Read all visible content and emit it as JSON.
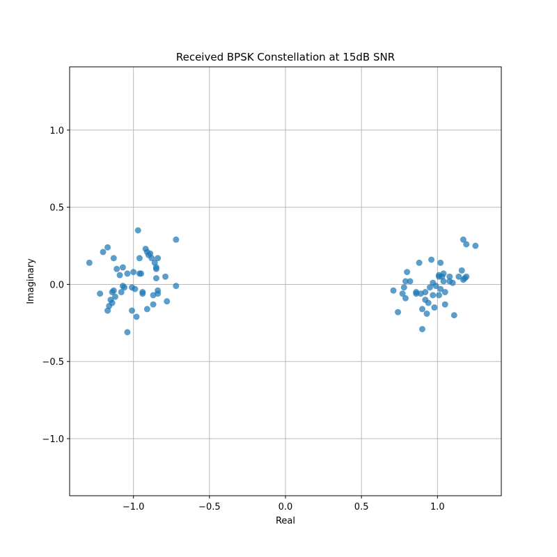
{
  "chart_data": {
    "type": "scatter",
    "title": "Received BPSK Constellation at 15dB SNR",
    "xlabel": "Real",
    "ylabel": "Imaginary",
    "xlim": [
      -1.42,
      1.42
    ],
    "ylim": [
      -1.37,
      1.41
    ],
    "xticks": [
      -1.0,
      -0.5,
      0.0,
      0.5,
      1.0
    ],
    "xtick_labels": [
      "−1.0",
      "−0.5",
      "0.0",
      "0.5",
      "1.0"
    ],
    "yticks": [
      -1.0,
      -0.5,
      0.0,
      0.5,
      1.0
    ],
    "ytick_labels": [
      "−1.0",
      "−0.5",
      "0.0",
      "0.5",
      "1.0"
    ],
    "grid": true,
    "marker_color": "#1f77b4",
    "points": [
      [
        -1.29,
        0.14
      ],
      [
        -1.22,
        -0.06
      ],
      [
        -1.2,
        0.21
      ],
      [
        -1.17,
        0.24
      ],
      [
        -1.17,
        -0.17
      ],
      [
        -1.16,
        -0.14
      ],
      [
        -1.15,
        -0.1
      ],
      [
        -1.14,
        -0.12
      ],
      [
        -1.14,
        -0.05
      ],
      [
        -1.13,
        -0.04
      ],
      [
        -1.13,
        0.17
      ],
      [
        -1.12,
        -0.08
      ],
      [
        -1.11,
        0.1
      ],
      [
        -1.09,
        0.06
      ],
      [
        -1.08,
        -0.05
      ],
      [
        -1.07,
        0.11
      ],
      [
        -1.07,
        -0.01
      ],
      [
        -1.06,
        -0.02
      ],
      [
        -1.04,
        -0.31
      ],
      [
        -1.04,
        0.07
      ],
      [
        -1.01,
        -0.17
      ],
      [
        -1.01,
        -0.02
      ],
      [
        -1.0,
        0.08
      ],
      [
        -0.99,
        -0.03
      ],
      [
        -0.98,
        -0.21
      ],
      [
        -0.97,
        0.35
      ],
      [
        -0.96,
        0.17
      ],
      [
        -0.96,
        0.07
      ],
      [
        -0.95,
        0.07
      ],
      [
        -0.94,
        -0.05
      ],
      [
        -0.94,
        -0.06
      ],
      [
        -0.92,
        0.23
      ],
      [
        -0.91,
        0.21
      ],
      [
        -0.91,
        -0.16
      ],
      [
        -0.9,
        0.19
      ],
      [
        -0.89,
        0.2
      ],
      [
        -0.88,
        0.17
      ],
      [
        -0.87,
        -0.07
      ],
      [
        -0.87,
        -0.13
      ],
      [
        -0.86,
        0.14
      ],
      [
        -0.85,
        0.11
      ],
      [
        -0.85,
        0.1
      ],
      [
        -0.85,
        0.04
      ],
      [
        -0.84,
        -0.04
      ],
      [
        -0.84,
        0.17
      ],
      [
        -0.84,
        -0.06
      ],
      [
        -0.79,
        0.05
      ],
      [
        -0.78,
        -0.11
      ],
      [
        -0.72,
        0.29
      ],
      [
        -0.72,
        -0.01
      ],
      [
        0.71,
        -0.04
      ],
      [
        0.74,
        -0.18
      ],
      [
        0.77,
        -0.06
      ],
      [
        0.78,
        -0.02
      ],
      [
        0.79,
        -0.09
      ],
      [
        0.79,
        0.02
      ],
      [
        0.8,
        0.08
      ],
      [
        0.82,
        0.02
      ],
      [
        0.86,
        -0.05
      ],
      [
        0.86,
        -0.06
      ],
      [
        0.88,
        0.14
      ],
      [
        0.89,
        -0.06
      ],
      [
        0.9,
        -0.16
      ],
      [
        0.9,
        -0.29
      ],
      [
        0.92,
        -0.05
      ],
      [
        0.92,
        -0.1
      ],
      [
        0.93,
        -0.19
      ],
      [
        0.94,
        -0.12
      ],
      [
        0.95,
        -0.02
      ],
      [
        0.96,
        0.16
      ],
      [
        0.97,
        0.01
      ],
      [
        0.97,
        -0.07
      ],
      [
        0.98,
        -0.15
      ],
      [
        0.99,
        -0.01
      ],
      [
        1.01,
        0.05
      ],
      [
        1.01,
        -0.07
      ],
      [
        1.01,
        0.06
      ],
      [
        1.02,
        -0.03
      ],
      [
        1.02,
        0.14
      ],
      [
        1.03,
        0.05
      ],
      [
        1.04,
        0.07
      ],
      [
        1.04,
        0.02
      ],
      [
        1.05,
        -0.13
      ],
      [
        1.05,
        -0.05
      ],
      [
        1.08,
        0.02
      ],
      [
        1.08,
        0.05
      ],
      [
        1.1,
        0.01
      ],
      [
        1.11,
        -0.2
      ],
      [
        1.14,
        0.05
      ],
      [
        1.16,
        0.09
      ],
      [
        1.17,
        0.29
      ],
      [
        1.17,
        0.03
      ],
      [
        1.18,
        0.04
      ],
      [
        1.19,
        0.26
      ],
      [
        1.19,
        0.05
      ],
      [
        1.25,
        0.25
      ]
    ]
  }
}
